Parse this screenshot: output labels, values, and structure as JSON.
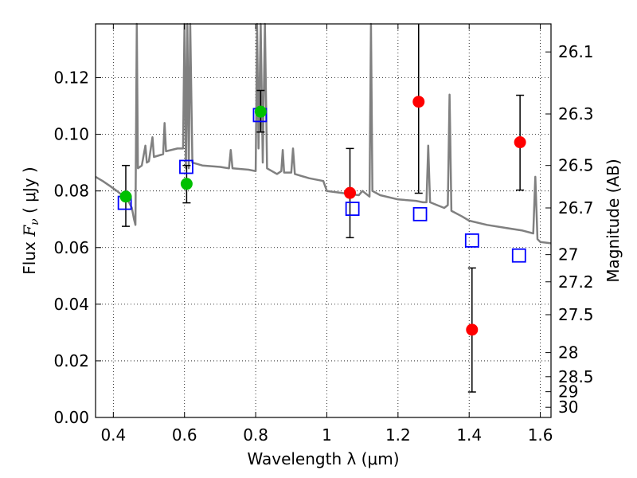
{
  "chart_data": {
    "type": "scatter",
    "title": "",
    "xlabel": "Wavelength  λ (μm)",
    "ylabel_parts": {
      "pre": "Flux ",
      "math": "F",
      "sub": "ν",
      "post": "  ( μJy )"
    },
    "ylabel_right": "Magnitude (AB)",
    "xlim": [
      0.35,
      1.63
    ],
    "ylim": [
      0.0,
      0.139
    ],
    "grid": true,
    "x_ticks": [
      0.4,
      0.6,
      0.8,
      1.0,
      1.2,
      1.4,
      1.6
    ],
    "x_tick_labels": [
      "0.4",
      "0.6",
      "0.8",
      "1",
      "1.2",
      "1.4",
      "1.6"
    ],
    "y_ticks": [
      0.0,
      0.02,
      0.04,
      0.06,
      0.08,
      0.1,
      0.12
    ],
    "y_tick_labels": [
      "0.00",
      "0.02",
      "0.04",
      "0.06",
      "0.08",
      "0.10",
      "0.12"
    ],
    "right_ticks": [
      {
        "flux": 0.1291,
        "label": "26.1"
      },
      {
        "flux": 0.1072,
        "label": "26.3"
      },
      {
        "flux": 0.089,
        "label": "26.5"
      },
      {
        "flux": 0.074,
        "label": "26.7"
      },
      {
        "flux": 0.0575,
        "label": "27"
      },
      {
        "flux": 0.0479,
        "label": "27.2"
      },
      {
        "flux": 0.0363,
        "label": "27.5"
      },
      {
        "flux": 0.0229,
        "label": "28"
      },
      {
        "flux": 0.0144,
        "label": "28.5"
      },
      {
        "flux": 0.0091,
        "label": "29"
      },
      {
        "flux": 0.0036,
        "label": "30"
      }
    ],
    "series": [
      {
        "marker": "circle",
        "color": "#00c000",
        "points": [
          {
            "x": 0.435,
            "y": 0.078,
            "yerr_low": 0.0675,
            "yerr_high": 0.089
          },
          {
            "x": 0.606,
            "y": 0.0825,
            "yerr_low": 0.0758,
            "yerr_high": 0.089
          },
          {
            "x": 0.814,
            "y": 0.108,
            "yerr_low": 0.1008,
            "yerr_high": 0.1155
          }
        ]
      },
      {
        "marker": "circle",
        "color": "#ff0000",
        "points": [
          {
            "x": 1.065,
            "y": 0.0793,
            "yerr_low": 0.0635,
            "yerr_high": 0.095
          },
          {
            "x": 1.258,
            "y": 0.1115,
            "yerr_low": 0.0792,
            "yerr_high": 0.142
          },
          {
            "x": 1.408,
            "y": 0.031,
            "yerr_low": 0.009,
            "yerr_high": 0.0528
          },
          {
            "x": 1.543,
            "y": 0.0972,
            "yerr_low": 0.0803,
            "yerr_high": 0.1138
          }
        ]
      },
      {
        "marker": "open-square",
        "color": "#0000ff",
        "points": [
          {
            "x": 0.432,
            "y": 0.0758
          },
          {
            "x": 0.605,
            "y": 0.0885
          },
          {
            "x": 0.812,
            "y": 0.1068
          },
          {
            "x": 1.072,
            "y": 0.0737
          },
          {
            "x": 1.262,
            "y": 0.0718
          },
          {
            "x": 1.408,
            "y": 0.0625
          },
          {
            "x": 1.54,
            "y": 0.0572
          }
        ]
      },
      {
        "marker": "line",
        "color": "#808080",
        "points": [
          [
            0.35,
            0.085
          ],
          [
            0.37,
            0.0835
          ],
          [
            0.39,
            0.0818
          ],
          [
            0.41,
            0.08
          ],
          [
            0.425,
            0.0785
          ],
          [
            0.44,
            0.077
          ],
          [
            0.452,
            0.074
          ],
          [
            0.458,
            0.07
          ],
          [
            0.462,
            0.068
          ],
          [
            0.466,
            0.14
          ],
          [
            0.469,
            0.088
          ],
          [
            0.48,
            0.089
          ],
          [
            0.49,
            0.096
          ],
          [
            0.494,
            0.09
          ],
          [
            0.5,
            0.0905
          ],
          [
            0.51,
            0.099
          ],
          [
            0.514,
            0.092
          ],
          [
            0.54,
            0.093
          ],
          [
            0.544,
            0.104
          ],
          [
            0.548,
            0.094
          ],
          [
            0.58,
            0.095
          ],
          [
            0.596,
            0.095
          ],
          [
            0.6,
            0.14
          ],
          [
            0.604,
            0.088
          ],
          [
            0.608,
            0.14
          ],
          [
            0.612,
            0.088
          ],
          [
            0.616,
            0.14
          ],
          [
            0.622,
            0.09
          ],
          [
            0.65,
            0.089
          ],
          [
            0.7,
            0.0885
          ],
          [
            0.725,
            0.088
          ],
          [
            0.73,
            0.0945
          ],
          [
            0.735,
            0.088
          ],
          [
            0.78,
            0.0875
          ],
          [
            0.8,
            0.087
          ],
          [
            0.804,
            0.14
          ],
          [
            0.808,
            0.095
          ],
          [
            0.814,
            0.14
          ],
          [
            0.82,
            0.09
          ],
          [
            0.826,
            0.14
          ],
          [
            0.832,
            0.088
          ],
          [
            0.86,
            0.086
          ],
          [
            0.872,
            0.087
          ],
          [
            0.876,
            0.0945
          ],
          [
            0.88,
            0.0865
          ],
          [
            0.9,
            0.0865
          ],
          [
            0.905,
            0.095
          ],
          [
            0.91,
            0.086
          ],
          [
            0.95,
            0.0845
          ],
          [
            0.99,
            0.0835
          ],
          [
            1.0,
            0.08
          ],
          [
            1.03,
            0.0795
          ],
          [
            1.06,
            0.079
          ],
          [
            1.09,
            0.0785
          ],
          [
            1.1,
            0.08
          ],
          [
            1.12,
            0.078
          ],
          [
            1.124,
            0.14
          ],
          [
            1.128,
            0.08
          ],
          [
            1.15,
            0.0785
          ],
          [
            1.2,
            0.077
          ],
          [
            1.25,
            0.0765
          ],
          [
            1.27,
            0.076
          ],
          [
            1.28,
            0.076
          ],
          [
            1.285,
            0.096
          ],
          [
            1.29,
            0.076
          ],
          [
            1.31,
            0.075
          ],
          [
            1.33,
            0.074
          ],
          [
            1.34,
            0.075
          ],
          [
            1.345,
            0.114
          ],
          [
            1.35,
            0.073
          ],
          [
            1.38,
            0.071
          ],
          [
            1.4,
            0.0695
          ],
          [
            1.45,
            0.068
          ],
          [
            1.5,
            0.067
          ],
          [
            1.55,
            0.066
          ],
          [
            1.58,
            0.065
          ],
          [
            1.586,
            0.085
          ],
          [
            1.592,
            0.063
          ],
          [
            1.6,
            0.062
          ],
          [
            1.63,
            0.0615
          ]
        ]
      }
    ]
  }
}
